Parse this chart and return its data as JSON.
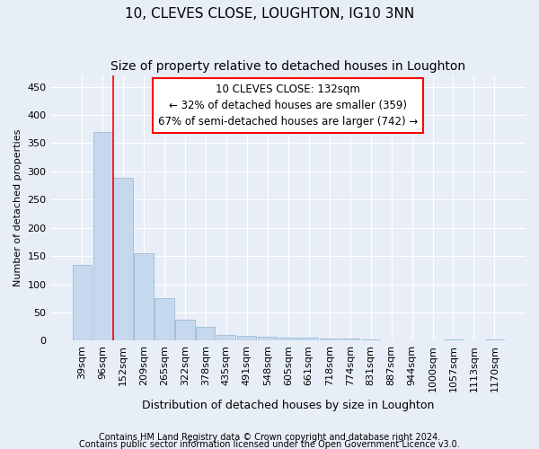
{
  "title1": "10, CLEVES CLOSE, LOUGHTON, IG10 3NN",
  "title2": "Size of property relative to detached houses in Loughton",
  "xlabel": "Distribution of detached houses by size in Loughton",
  "ylabel": "Number of detached properties",
  "categories": [
    "39sqm",
    "96sqm",
    "152sqm",
    "209sqm",
    "265sqm",
    "322sqm",
    "378sqm",
    "435sqm",
    "491sqm",
    "548sqm",
    "605sqm",
    "661sqm",
    "718sqm",
    "774sqm",
    "831sqm",
    "887sqm",
    "944sqm",
    "1000sqm",
    "1057sqm",
    "1113sqm",
    "1170sqm"
  ],
  "values": [
    135,
    370,
    288,
    155,
    75,
    37,
    25,
    10,
    8,
    7,
    5,
    5,
    4,
    4,
    3,
    0,
    0,
    0,
    3,
    0,
    3
  ],
  "bar_color": "#c5d8ed",
  "bar_edge_color": "#9bbcd6",
  "red_line_x": 1.5,
  "ylim": [
    0,
    470
  ],
  "yticks": [
    0,
    50,
    100,
    150,
    200,
    250,
    300,
    350,
    400,
    450
  ],
  "annotation_line1": "10 CLEVES CLOSE: 132sqm",
  "annotation_line2": "← 32% of detached houses are smaller (359)",
  "annotation_line3": "67% of semi-detached houses are larger (742) →",
  "footnote1": "Contains HM Land Registry data © Crown copyright and database right 2024.",
  "footnote2": "Contains public sector information licensed under the Open Government Licence v3.0.",
  "bg_color": "#e8eef7",
  "plot_bg_color": "#e8eef7",
  "grid_color": "#ffffff",
  "title1_fontsize": 11,
  "title2_fontsize": 10,
  "xlabel_fontsize": 9,
  "ylabel_fontsize": 8,
  "tick_fontsize": 8,
  "annot_fontsize": 8.5,
  "footnote_fontsize": 7
}
